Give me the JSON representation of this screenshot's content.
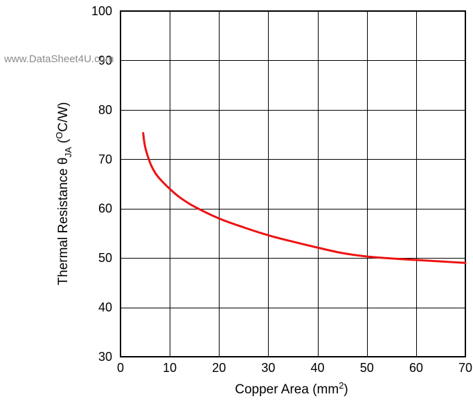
{
  "watermark": "www.DataSheet4U.com",
  "colors": {
    "series": "#ee1111",
    "grid": "#000000",
    "background": "#ffffff",
    "watermark": "#8a8a8a"
  },
  "chart_data": {
    "type": "line",
    "title": "",
    "xlabel": {
      "text": "Copper Area (mm",
      "superscript": "2",
      "suffix": ")"
    },
    "ylabel": {
      "prefix": "Thermal Resistance ",
      "symbol": "θ",
      "subscript": "JA",
      "unit_open": " (",
      "unit_superscript": "O",
      "unit_rest": "C/W)"
    },
    "xlim": [
      0,
      70
    ],
    "ylim": [
      30,
      100
    ],
    "xticks": [
      0,
      10,
      20,
      30,
      40,
      50,
      60,
      70
    ],
    "yticks": [
      30,
      40,
      50,
      60,
      70,
      80,
      90,
      100
    ],
    "grid": true,
    "legend": "none",
    "series": [
      {
        "color": "#ee1111",
        "x": [
          4.6,
          5,
          6,
          7,
          8,
          10,
          12,
          15,
          20,
          25,
          30,
          35,
          40,
          45,
          50,
          55,
          60,
          65,
          70
        ],
        "y": [
          75.3,
          72.5,
          69.3,
          67.3,
          66.0,
          64.0,
          62.3,
          60.4,
          58.0,
          56.2,
          54.6,
          53.3,
          52.1,
          51.0,
          50.3,
          49.9,
          49.6,
          49.3,
          49.0
        ]
      }
    ]
  }
}
